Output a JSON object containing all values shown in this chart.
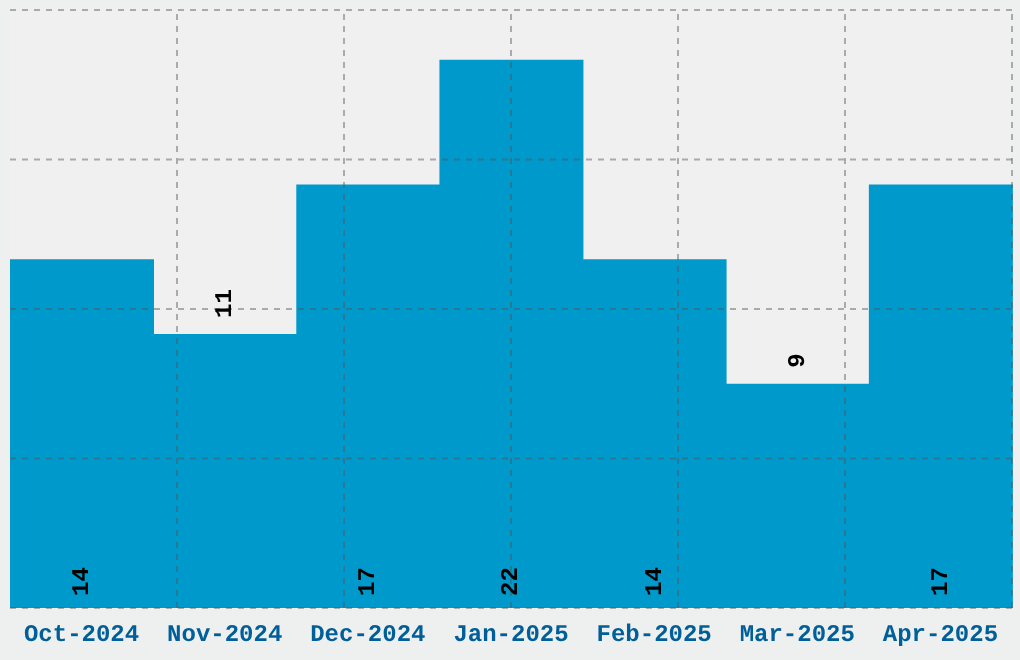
{
  "chart_data": {
    "type": "bar",
    "categories": [
      "Oct-2024",
      "Nov-2024",
      "Dec-2024",
      "Jan-2025",
      "Feb-2025",
      "Mar-2025",
      "Apr-2025"
    ],
    "values": [
      14,
      11,
      17,
      22,
      14,
      9,
      17
    ],
    "color": "#0099cc",
    "ylim": [
      0,
      24
    ],
    "yticks": [
      {
        "value": 0,
        "label": null
      },
      {
        "value": 6,
        "label": null
      },
      {
        "value": 12,
        "label": null
      },
      {
        "value": 18,
        "label": null
      },
      {
        "value": 24,
        "label": null
      }
    ],
    "tick_labels": "x",
    "grid": true,
    "data_labels": true
  }
}
